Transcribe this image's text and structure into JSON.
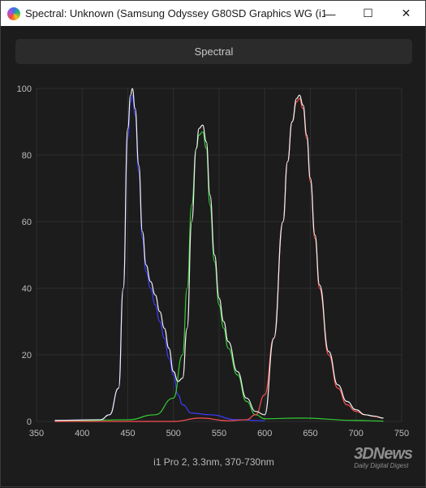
{
  "window": {
    "title": "Spectral: Unknown (Samsung Odyssey G80SD Graphics WG (i1...",
    "minimize_glyph": "—",
    "maximize_glyph": "☐",
    "close_glyph": "✕"
  },
  "tab": {
    "label": "Spectral"
  },
  "caption": "i1 Pro 2, 3.3nm, 370-730nm",
  "watermark": {
    "main": "3DNews",
    "sub": "Daily Digital Digest"
  },
  "colors": {
    "background": "#1c1c1c",
    "blue": "#3b3bff",
    "green": "#33cc33",
    "red": "#ff5050",
    "white": "#f0f0f0",
    "grid": "#2e2e2e"
  },
  "chart_data": {
    "type": "line",
    "xlim": [
      350,
      750
    ],
    "ylim": [
      0,
      100
    ],
    "x_ticks": [
      350,
      400,
      450,
      500,
      550,
      600,
      650,
      700,
      750
    ],
    "y_ticks": [
      0,
      20,
      40,
      60,
      80,
      100
    ],
    "grid": true,
    "series": [
      {
        "color": "blue",
        "x": [
          370,
          420,
          430,
          440,
          445,
          450,
          453,
          455,
          458,
          462,
          466,
          470,
          475,
          480,
          485,
          490,
          495,
          500,
          505,
          510,
          520,
          540,
          570,
          600
        ],
        "y": [
          0.3,
          0.5,
          2,
          10,
          40,
          85,
          96,
          98,
          92,
          75,
          55,
          45,
          40,
          35,
          30,
          25,
          19,
          14,
          8,
          5,
          2.5,
          2,
          0.5,
          0.2
        ]
      },
      {
        "color": "green",
        "x": [
          370,
          450,
          480,
          500,
          510,
          515,
          520,
          525,
          528,
          532,
          536,
          540,
          545,
          550,
          555,
          560,
          570,
          580,
          590,
          600,
          640,
          700,
          730
        ],
        "y": [
          0,
          0.5,
          2,
          7,
          20,
          40,
          65,
          82,
          86,
          87,
          82,
          65,
          48,
          35,
          28,
          22,
          14,
          6,
          2,
          0.8,
          1,
          0.3,
          0.1
        ]
      },
      {
        "color": "red",
        "x": [
          370,
          500,
          530,
          560,
          580,
          590,
          600,
          610,
          620,
          625,
          630,
          635,
          638,
          642,
          646,
          650,
          655,
          660,
          670,
          680,
          690,
          700,
          710,
          720,
          730
        ],
        "y": [
          0,
          0,
          1,
          0.2,
          0.5,
          2,
          8,
          25,
          60,
          78,
          90,
          96,
          97,
          94,
          85,
          72,
          55,
          40,
          20,
          10,
          5,
          3,
          2,
          1.5,
          1
        ]
      },
      {
        "color": "white",
        "x": [
          370,
          420,
          430,
          440,
          445,
          450,
          453,
          455,
          458,
          462,
          466,
          470,
          475,
          480,
          485,
          490,
          495,
          500,
          505,
          510,
          515,
          520,
          525,
          528,
          532,
          536,
          540,
          545,
          550,
          555,
          560,
          570,
          580,
          590,
          600,
          610,
          620,
          625,
          630,
          635,
          638,
          642,
          646,
          650,
          655,
          660,
          670,
          680,
          690,
          700,
          710,
          720,
          730
        ],
        "y": [
          0.3,
          0.5,
          2,
          10,
          40,
          88,
          98,
          100,
          94,
          77,
          57,
          47,
          42,
          38,
          33,
          28,
          22,
          15,
          12,
          13,
          28,
          60,
          82,
          88,
          89,
          84,
          68,
          50,
          37,
          30,
          24,
          15,
          7,
          3,
          2,
          25,
          60,
          78,
          90,
          97,
          98,
          95,
          86,
          73,
          56,
          41,
          21,
          11,
          6,
          3.5,
          2,
          1.6,
          1
        ]
      }
    ]
  }
}
